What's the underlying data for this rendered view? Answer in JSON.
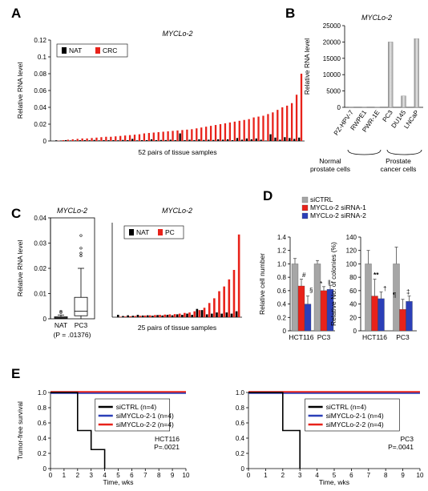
{
  "panels": [
    {
      "id": "A",
      "letter": "A"
    },
    {
      "id": "B",
      "letter": "B"
    },
    {
      "id": "C",
      "letter": "C"
    },
    {
      "id": "D",
      "letter": "D"
    },
    {
      "id": "E",
      "letter": "E"
    }
  ],
  "colors": {
    "nat": "#000000",
    "crc": "#e8221a",
    "red": "#e8221a",
    "blue": "#2b3fb8",
    "gray": "#a6a6a6",
    "purple": "#8b6fbf",
    "black": "#000000"
  },
  "chart_data": [
    {
      "id": "A",
      "type": "bar",
      "title": "MYCLo-2",
      "xlabel": "52 pairs of tissue samples",
      "ylabel": "Relative RNA level",
      "ylim": [
        0,
        0.12
      ],
      "yticks": [
        "0",
        "0.02",
        "0.04",
        "0.06",
        "0.08",
        "0.1",
        "0.12"
      ],
      "legend": "top-left",
      "series": [
        {
          "name": "NAT",
          "color": "#000000",
          "values": [
            0.0008,
            0.0005,
            0.001,
            0.0006,
            0.0007,
            0.0009,
            0.001,
            0.0008,
            0.0012,
            0.0007,
            0.001,
            0.0009,
            0.001,
            0.0008,
            0.0012,
            0.001,
            0.0025,
            0.0007,
            0.001,
            0.001,
            0.002,
            0.001,
            0.0012,
            0.0011,
            0.0015,
            0.001,
            0.009,
            0.001,
            0.0015,
            0.001,
            0.002,
            0.0012,
            0.0015,
            0.0012,
            0.002,
            0.0015,
            0.002,
            0.001,
            0.0035,
            0.0015,
            0.003,
            0.002,
            0.003,
            0.0015,
            0.0005,
            0.008,
            0.004,
            0.0015,
            0.0045,
            0.0035,
            0.0025,
            0.004
          ]
        },
        {
          "name": "CRC",
          "color": "#e8221a",
          "values": [
            0.0003,
            0.001,
            0.0015,
            0.002,
            0.0025,
            0.003,
            0.003,
            0.0035,
            0.004,
            0.0045,
            0.005,
            0.005,
            0.0055,
            0.006,
            0.0065,
            0.007,
            0.0075,
            0.008,
            0.009,
            0.0095,
            0.01,
            0.0105,
            0.011,
            0.0115,
            0.012,
            0.0125,
            0.013,
            0.0135,
            0.014,
            0.015,
            0.016,
            0.017,
            0.018,
            0.019,
            0.02,
            0.021,
            0.022,
            0.023,
            0.024,
            0.025,
            0.026,
            0.028,
            0.029,
            0.03,
            0.032,
            0.034,
            0.037,
            0.04,
            0.042,
            0.045,
            0.055,
            0.08
          ]
        }
      ]
    },
    {
      "id": "B",
      "type": "bar",
      "title": "MYCLo-2",
      "ylabel": "Relative RNA level",
      "ylim": [
        0,
        25000
      ],
      "yticks": [
        "0",
        "5000",
        "10000",
        "15000",
        "20000",
        "25000"
      ],
      "categories": [
        "PZ-HPV-7",
        "RWPE1",
        "PWR-1E",
        "PC3",
        "DU145",
        "LNCaP"
      ],
      "values": [
        15,
        25,
        40,
        20000,
        3500,
        21000
      ],
      "groups": [
        "Normal prostate cells",
        "Prostate cancer cells"
      ]
    },
    {
      "id": "C1",
      "type": "box",
      "title": "MYCLo-2",
      "ylabel": "Relative RNA level",
      "ylim": [
        0,
        0.04
      ],
      "yticks": [
        "0",
        "0.01",
        "0.02",
        "0.03",
        "0.04"
      ],
      "categories": [
        "NAT",
        "PC3"
      ],
      "boxes": [
        {
          "min": 0,
          "q1": 0.0002,
          "median": 0.0005,
          "q3": 0.0008,
          "max": 0.0015,
          "outliers": [
            0.0025,
            0.003
          ]
        },
        {
          "min": 0,
          "q1": 0.0012,
          "median": 0.003,
          "q3": 0.0085,
          "max": 0.02,
          "outliers": [
            0.025,
            0.026,
            0.028,
            0.033
          ]
        }
      ],
      "pvalue": "(P = .01376)"
    },
    {
      "id": "C2",
      "type": "bar",
      "title": "MYCLo-2",
      "xlabel": "25 pairs of tissue samples",
      "ylim": [
        0,
        0.04
      ],
      "legend": "top-left",
      "series": [
        {
          "name": "NAT",
          "color": "#000000",
          "values": [
            0.001,
            0.0005,
            0.0008,
            0.0006,
            0.001,
            0.0007,
            0.0008,
            0.0006,
            0.0009,
            0.0007,
            0.001,
            0.0008,
            0.0012,
            0.001,
            0.0015,
            0.001,
            0.0035,
            0.003,
            0.0012,
            0.0015,
            0.002,
            0.0015,
            0.002,
            0.0015,
            0.0025
          ]
        },
        {
          "name": "PC",
          "color": "#e8221a",
          "values": [
            0.0002,
            0.0003,
            0.0004,
            0.0005,
            0.0006,
            0.0007,
            0.0008,
            0.0009,
            0.001,
            0.0011,
            0.0012,
            0.0013,
            0.0015,
            0.0018,
            0.002,
            0.0025,
            0.003,
            0.004,
            0.006,
            0.008,
            0.011,
            0.013,
            0.016,
            0.02,
            0.035
          ]
        }
      ]
    },
    {
      "id": "D1",
      "type": "bar",
      "ylabel": "Relative cell number",
      "ylim": [
        0,
        1.4
      ],
      "yticks": [
        "0",
        "0.2",
        "0.4",
        "0.6",
        "0.8",
        "1.0",
        "1.2",
        "1.4"
      ],
      "categories": [
        "HCT116",
        "PC3"
      ],
      "legend": "top",
      "series": [
        {
          "name": "siCTRL",
          "color": "#a6a6a6",
          "values": [
            1.0,
            1.0
          ],
          "err": [
            0.08,
            0.05
          ]
        },
        {
          "name": "MYCLo-2 siRNA-1",
          "color": "#e8221a",
          "values": [
            0.67,
            0.6
          ],
          "err": [
            0.1,
            0.06
          ]
        },
        {
          "name": "MYCLo-2 siRNA-2",
          "color": "#2b3fb8",
          "values": [
            0.4,
            0.62
          ],
          "err": [
            0.12,
            0.06
          ]
        }
      ],
      "marks": [
        "#",
        "§",
        "*",
        "‖"
      ]
    },
    {
      "id": "D2",
      "type": "bar",
      "ylabel": "Relative No. of colonies (%)",
      "ylim": [
        0,
        140
      ],
      "yticks": [
        "0",
        "20",
        "40",
        "60",
        "80",
        "100",
        "120",
        "140"
      ],
      "categories": [
        "HCT116",
        "PC3"
      ],
      "series": [
        {
          "name": "siCTRL",
          "color": "#a6a6a6",
          "values": [
            100,
            100
          ],
          "err": [
            20,
            25
          ]
        },
        {
          "name": "MYCLo-2 siRNA-1",
          "color": "#e8221a",
          "values": [
            52,
            32
          ],
          "err": [
            25,
            15
          ]
        },
        {
          "name": "MYCLo-2 siRNA-2",
          "color": "#2b3fb8",
          "values": [
            48,
            44
          ],
          "err": [
            10,
            8
          ]
        }
      ],
      "marks": [
        "**",
        "†",
        "¶",
        "‡"
      ]
    },
    {
      "id": "E1",
      "type": "line",
      "xlabel": "Time, wks",
      "ylabel": "Tumor-free survival",
      "xlim": [
        0,
        10
      ],
      "ylim": [
        0,
        1.0
      ],
      "xticks": [
        "0",
        "1",
        "2",
        "3",
        "4",
        "5",
        "6",
        "7",
        "8",
        "9",
        "10"
      ],
      "yticks": [
        "0",
        "0.2",
        "0.4",
        "0.6",
        "0.8",
        "1.0"
      ],
      "legend": "top-right",
      "cell": "HCT116",
      "pvalue": "P=.0021",
      "series": [
        {
          "name": "siCTRL (n=4)",
          "color": "#000000",
          "x": [
            0,
            2,
            2,
            3,
            3,
            4,
            4
          ],
          "y": [
            1,
            1,
            0.5,
            0.5,
            0.25,
            0.25,
            0
          ]
        },
        {
          "name": "siMYCLo-2-1 (n=4)",
          "color": "#2b3fb8",
          "x": [
            0,
            10
          ],
          "y": [
            1,
            1
          ]
        },
        {
          "name": "siMYCLo-2-2 (n=4)",
          "color": "#e8221a",
          "x": [
            0,
            10
          ],
          "y": [
            1,
            1
          ]
        }
      ]
    },
    {
      "id": "E2",
      "type": "line",
      "xlabel": "Time, wks",
      "xlim": [
        0,
        10
      ],
      "ylim": [
        0,
        1.0
      ],
      "xticks": [
        "0",
        "1",
        "2",
        "3",
        "4",
        "5",
        "6",
        "7",
        "8",
        "9",
        "10"
      ],
      "yticks": [
        "0",
        "0.2",
        "0.4",
        "0.6",
        "0.8",
        "1.0"
      ],
      "legend": "top-right",
      "cell": "PC3",
      "pvalue": "P=.0041",
      "series": [
        {
          "name": "siCTRL (n=4)",
          "color": "#000000",
          "x": [
            0,
            2,
            2,
            3,
            3
          ],
          "y": [
            1,
            1,
            0.5,
            0.5,
            0
          ]
        },
        {
          "name": "siMYCLo-2-1 (n=4)",
          "color": "#2b3fb8",
          "x": [
            0,
            10
          ],
          "y": [
            1,
            1
          ]
        },
        {
          "name": "siMYCLo-2-2 (n=4)",
          "color": "#e8221a",
          "x": [
            0,
            10
          ],
          "y": [
            1,
            1
          ]
        }
      ]
    }
  ]
}
